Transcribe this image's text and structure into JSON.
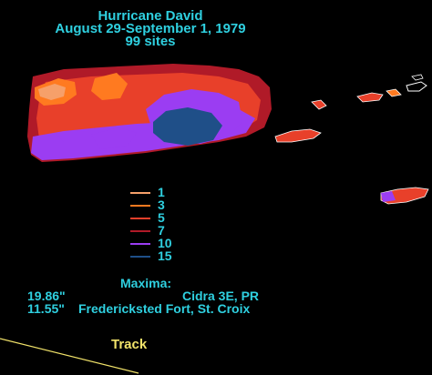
{
  "header": {
    "title": "Hurricane David",
    "dates": "August 29-September 1, 1979",
    "sites": "99 sites"
  },
  "legend": {
    "items": [
      {
        "label": "1",
        "color": "#f6a06a"
      },
      {
        "label": "3",
        "color": "#ff7a20"
      },
      {
        "label": "5",
        "color": "#e8402a"
      },
      {
        "label": "7",
        "color": "#b01a28"
      },
      {
        "label": "10",
        "color": "#9b3df2"
      },
      {
        "label": "15",
        "color": "#1f4f88"
      }
    ]
  },
  "maxima": {
    "heading": "Maxima:",
    "rows": [
      {
        "amount": "19.86\"",
        "location": "Cidra 3E, PR"
      },
      {
        "amount": "11.55\"",
        "location": "Fredericksted Fort, St. Croix"
      }
    ]
  },
  "track": {
    "label": "Track",
    "color": "#f2e36a"
  }
}
